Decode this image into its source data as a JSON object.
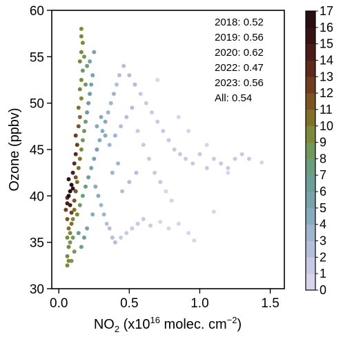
{
  "chart_data": {
    "type": "scatter",
    "title": "",
    "xlabel": {
      "main": "NO",
      "sub": "2",
      "pre_sup": " (x10",
      "sup1": "16",
      "mid": " molec. cm",
      "sup2": "−2",
      "end": ")"
    },
    "ylabel": "Ozone (ppbv)",
    "xlim": [
      -0.05,
      1.6
    ],
    "ylim": [
      30,
      60
    ],
    "xticks": [
      0.0,
      0.5,
      1.0,
      1.5
    ],
    "xtick_labels": [
      "0.0",
      "0.5",
      "1.0",
      "1.5"
    ],
    "yticks": [
      30,
      35,
      40,
      45,
      50,
      55,
      60
    ],
    "ytick_labels": [
      "30",
      "35",
      "40",
      "45",
      "50",
      "55",
      "60"
    ],
    "grid": false,
    "colorbar": {
      "min": 0,
      "max": 17,
      "ticks": [
        "0",
        "1",
        "2",
        "3",
        "4",
        "5",
        "6",
        "7",
        "8",
        "9",
        "10",
        "11",
        "12",
        "13",
        "14",
        "15",
        "16",
        "17"
      ],
      "colors": [
        "#d9d4ec",
        "#c8c9e4",
        "#b4bedb",
        "#9fb4cf",
        "#88aabf",
        "#78a3aa",
        "#6d9e98",
        "#6b9d7f",
        "#72985d",
        "#7c8a39",
        "#7f712a",
        "#7c5523",
        "#713d1f",
        "#5e2a1c",
        "#4a1d19",
        "#361415",
        "#2a0f12"
      ]
    },
    "annotations": [
      "2018: 0.52",
      "2019: 0.56",
      "2020: 0.62",
      "2022: 0.47",
      "2023: 0.56",
      "All: 0.54"
    ],
    "series": [
      {
        "values_description_is_density_color": true,
        "points": [
          [
            0.05,
            38.5,
            12
          ],
          [
            0.06,
            39.2,
            14
          ],
          [
            0.07,
            40.0,
            16
          ],
          [
            0.08,
            40.5,
            17
          ],
          [
            0.09,
            41.2,
            16
          ],
          [
            0.07,
            41.8,
            15
          ],
          [
            0.06,
            39.8,
            13
          ],
          [
            0.08,
            39.0,
            14
          ],
          [
            0.09,
            38.2,
            12
          ],
          [
            0.1,
            40.8,
            15
          ],
          [
            0.1,
            42.5,
            14
          ],
          [
            0.11,
            43.5,
            13
          ],
          [
            0.12,
            44.5,
            13
          ],
          [
            0.13,
            45.5,
            12
          ],
          [
            0.12,
            46.5,
            12
          ],
          [
            0.14,
            47.5,
            11
          ],
          [
            0.15,
            48.5,
            10
          ],
          [
            0.14,
            49.5,
            10
          ],
          [
            0.16,
            50.5,
            9
          ],
          [
            0.15,
            51.5,
            9
          ],
          [
            0.16,
            52.5,
            9
          ],
          [
            0.17,
            53.5,
            8
          ],
          [
            0.15,
            54.5,
            9
          ],
          [
            0.16,
            55.5,
            9
          ],
          [
            0.17,
            56.5,
            9
          ],
          [
            0.16,
            57.2,
            9
          ],
          [
            0.16,
            58.0,
            9
          ],
          [
            0.18,
            55.0,
            8
          ],
          [
            0.2,
            54.0,
            7
          ],
          [
            0.19,
            52.0,
            8
          ],
          [
            0.06,
            37.5,
            11
          ],
          [
            0.07,
            36.5,
            10
          ],
          [
            0.06,
            35.5,
            9
          ],
          [
            0.07,
            34.5,
            9
          ],
          [
            0.06,
            33.5,
            9
          ],
          [
            0.07,
            33.0,
            9
          ],
          [
            0.06,
            32.5,
            9
          ],
          [
            0.08,
            36.0,
            9
          ],
          [
            0.09,
            37.0,
            10
          ],
          [
            0.08,
            35.0,
            8
          ],
          [
            0.11,
            39.5,
            11
          ],
          [
            0.12,
            40.5,
            11
          ],
          [
            0.13,
            41.5,
            10
          ],
          [
            0.12,
            42.0,
            11
          ],
          [
            0.14,
            43.0,
            10
          ],
          [
            0.15,
            44.0,
            10
          ],
          [
            0.16,
            45.0,
            9
          ],
          [
            0.17,
            46.0,
            8
          ],
          [
            0.18,
            47.0,
            8
          ],
          [
            0.19,
            48.0,
            7
          ],
          [
            0.2,
            49.0,
            6
          ],
          [
            0.21,
            50.0,
            6
          ],
          [
            0.22,
            51.0,
            6
          ],
          [
            0.23,
            52.0,
            5
          ],
          [
            0.24,
            53.0,
            5
          ],
          [
            0.22,
            54.5,
            5
          ],
          [
            0.25,
            55.5,
            5
          ],
          [
            0.13,
            38.0,
            9
          ],
          [
            0.15,
            39.0,
            8
          ],
          [
            0.17,
            40.0,
            7
          ],
          [
            0.19,
            41.0,
            7
          ],
          [
            0.21,
            42.0,
            6
          ],
          [
            0.23,
            43.0,
            5
          ],
          [
            0.25,
            44.0,
            5
          ],
          [
            0.27,
            45.0,
            5
          ],
          [
            0.29,
            46.0,
            4
          ],
          [
            0.31,
            47.0,
            4
          ],
          [
            0.33,
            48.0,
            4
          ],
          [
            0.35,
            49.0,
            3
          ],
          [
            0.37,
            50.0,
            3
          ],
          [
            0.39,
            51.0,
            3
          ],
          [
            0.41,
            52.0,
            2
          ],
          [
            0.43,
            53.0,
            2
          ],
          [
            0.46,
            54.0,
            2
          ],
          [
            0.5,
            53.0,
            2
          ],
          [
            0.54,
            52.0,
            2
          ],
          [
            0.58,
            51.0,
            1
          ],
          [
            0.62,
            50.0,
            1
          ],
          [
            0.66,
            49.0,
            1
          ],
          [
            0.7,
            48.0,
            1
          ],
          [
            0.74,
            47.0,
            1
          ],
          [
            0.78,
            46.0,
            1
          ],
          [
            0.82,
            45.0,
            1
          ],
          [
            0.86,
            44.5,
            1
          ],
          [
            0.9,
            44.0,
            1
          ],
          [
            0.95,
            43.5,
            1
          ],
          [
            1.0,
            44.5,
            1
          ],
          [
            1.05,
            43.0,
            1
          ],
          [
            1.1,
            44.0,
            1
          ],
          [
            1.15,
            43.5,
            1
          ],
          [
            1.2,
            43.0,
            1
          ],
          [
            1.25,
            44.0,
            1
          ],
          [
            1.3,
            44.5,
            1
          ],
          [
            1.35,
            44.0,
            1
          ],
          [
            1.44,
            43.6,
            0
          ],
          [
            1.2,
            42.5,
            0
          ],
          [
            1.05,
            45.5,
            0
          ],
          [
            0.92,
            47.0,
            0
          ],
          [
            0.85,
            48.5,
            0
          ],
          [
            0.7,
            52.5,
            0
          ],
          [
            0.26,
            41.0,
            4
          ],
          [
            0.28,
            40.0,
            4
          ],
          [
            0.3,
            39.0,
            3
          ],
          [
            0.32,
            38.0,
            3
          ],
          [
            0.34,
            37.0,
            2
          ],
          [
            0.36,
            36.5,
            2
          ],
          [
            0.38,
            35.5,
            2
          ],
          [
            0.4,
            35.0,
            2
          ],
          [
            0.44,
            35.5,
            1
          ],
          [
            0.48,
            36.0,
            1
          ],
          [
            0.52,
            36.5,
            1
          ],
          [
            0.56,
            37.0,
            1
          ],
          [
            0.6,
            37.5,
            1
          ],
          [
            0.65,
            36.8,
            1
          ],
          [
            0.72,
            37.2,
            0
          ],
          [
            0.78,
            36.5,
            0
          ],
          [
            0.85,
            37.0,
            0
          ],
          [
            0.92,
            36.0,
            0
          ],
          [
            0.96,
            35.2,
            0
          ],
          [
            1.1,
            38.3,
            0
          ],
          [
            0.24,
            38.0,
            4
          ],
          [
            0.2,
            36.5,
            5
          ],
          [
            0.18,
            35.5,
            6
          ],
          [
            0.16,
            34.5,
            6
          ],
          [
            0.14,
            36.0,
            7
          ],
          [
            0.1,
            35.5,
            8
          ],
          [
            0.11,
            34.0,
            8
          ],
          [
            0.09,
            33.0,
            8
          ],
          [
            0.1,
            37.5,
            9
          ],
          [
            0.11,
            38.5,
            10
          ],
          [
            0.27,
            47.5,
            4
          ],
          [
            0.3,
            48.5,
            4
          ],
          [
            0.33,
            46.5,
            4
          ],
          [
            0.36,
            45.5,
            3
          ],
          [
            0.4,
            46.5,
            3
          ],
          [
            0.44,
            47.5,
            2
          ],
          [
            0.48,
            48.5,
            2
          ],
          [
            0.52,
            49.5,
            2
          ],
          [
            0.56,
            47.0,
            1
          ],
          [
            0.6,
            45.5,
            1
          ],
          [
            0.64,
            44.0,
            1
          ],
          [
            0.68,
            42.5,
            1
          ],
          [
            0.72,
            41.5,
            1
          ],
          [
            0.76,
            40.5,
            0
          ],
          [
            0.8,
            39.5,
            0
          ],
          [
            0.45,
            40.5,
            2
          ],
          [
            0.5,
            41.5,
            2
          ],
          [
            0.55,
            42.5,
            2
          ],
          [
            0.42,
            43.5,
            3
          ],
          [
            0.38,
            42.5,
            3
          ]
        ]
      }
    ]
  }
}
